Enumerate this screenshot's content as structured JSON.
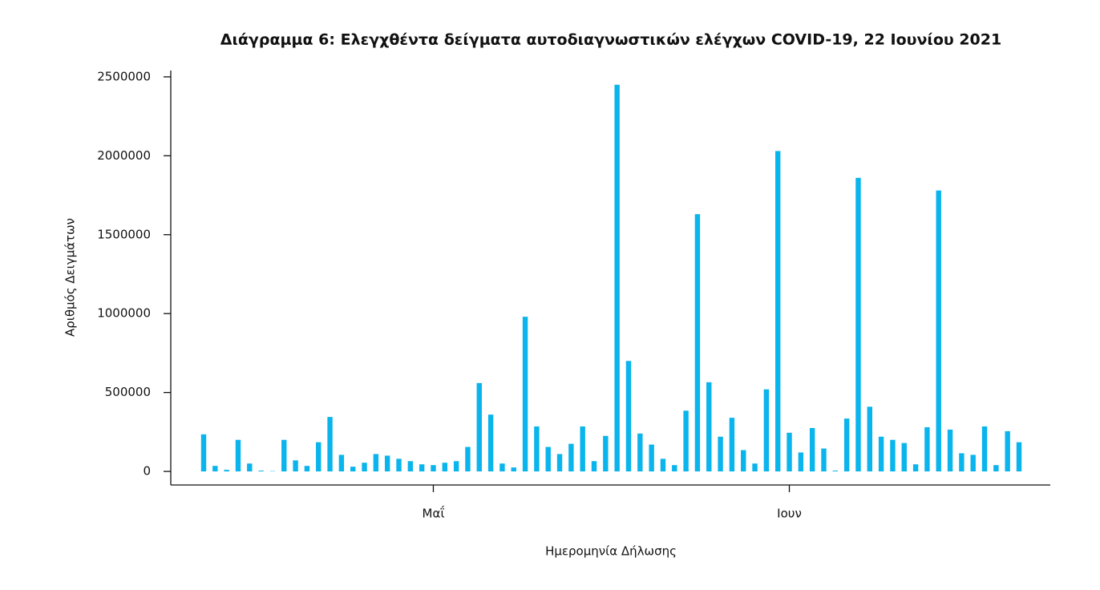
{
  "chart_data": {
    "type": "bar",
    "title": "Διάγραμμα 6: Ελεγχθέντα δείγματα αυτοδιαγνωστικών ελέγχων COVID-19, 22 Ιουνίου 2021",
    "x_label": "Ημερομηνία Δήλωσης",
    "y_label": "Αριθμός Δειγμάτων",
    "color": "#0ab4ec",
    "categories": [
      null,
      null,
      null,
      null,
      null,
      null,
      null,
      null,
      null,
      null,
      null,
      null,
      null,
      null,
      null,
      null,
      null,
      null,
      null,
      null,
      "Μαΐ",
      null,
      null,
      null,
      null,
      null,
      null,
      null,
      null,
      null,
      null,
      null,
      null,
      null,
      null,
      null,
      null,
      null,
      null,
      null,
      null,
      null,
      null,
      null,
      null,
      null,
      null,
      null,
      null,
      null,
      null,
      "Ιουν",
      null,
      null,
      null,
      null,
      null,
      null,
      null,
      null,
      null,
      null,
      null,
      null,
      null,
      null,
      null,
      null,
      null,
      null,
      null,
      null
    ],
    "values": [
      235000,
      35000,
      10000,
      200000,
      50000,
      5000,
      2000,
      200000,
      70000,
      35000,
      185000,
      345000,
      105000,
      30000,
      55000,
      110000,
      100000,
      80000,
      65000,
      45000,
      40000,
      55000,
      65000,
      155000,
      560000,
      360000,
      50000,
      25000,
      980000,
      285000,
      155000,
      110000,
      175000,
      285000,
      65000,
      225000,
      2450000,
      700000,
      240000,
      170000,
      80000,
      40000,
      385000,
      1630000,
      565000,
      220000,
      340000,
      135000,
      50000,
      520000,
      2030000,
      245000,
      120000,
      275000,
      145000,
      5000,
      335000,
      1860000,
      410000,
      220000,
      200000,
      180000,
      45000,
      280000,
      1780000,
      265000,
      115000,
      105000,
      285000,
      40000,
      255000,
      185000
    ],
    "ylim": [
      -86000,
      2540000
    ],
    "yticks": [
      0,
      500000,
      1000000,
      1500000,
      2000000,
      2500000
    ]
  }
}
